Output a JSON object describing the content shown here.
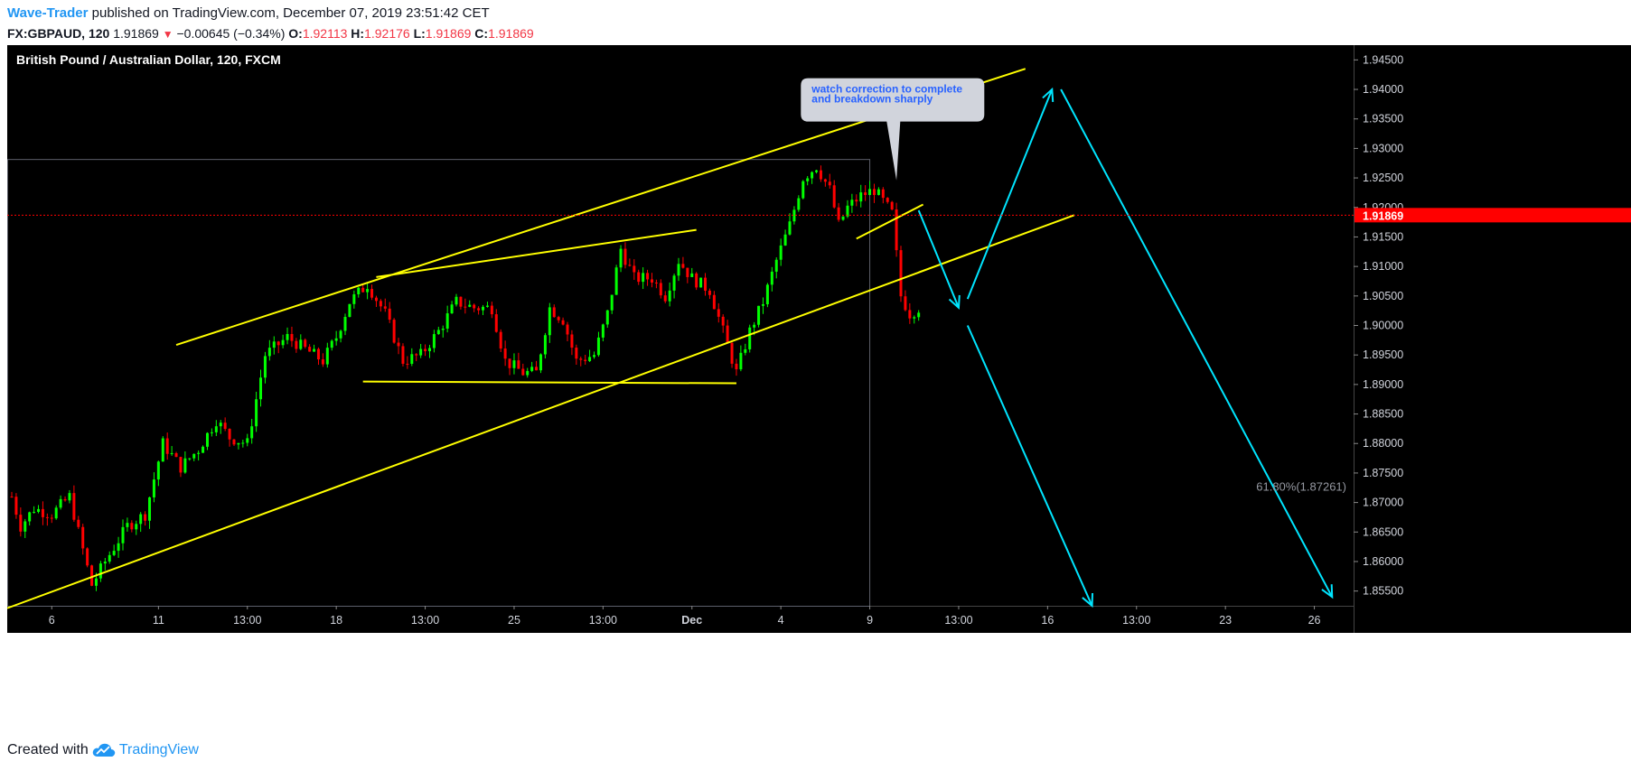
{
  "header": {
    "author": "Wave-Trader",
    "published_text": "published on TradingView.com, December 07, 2019 23:51:42 CET",
    "symbol": "FX:GBPAUD, 120",
    "last": "1.91869",
    "change": "−0.00645 (−0.34%)",
    "open_label": "O:",
    "open": "1.92113",
    "high_label": "H:",
    "high": "1.92176",
    "low_label": "L:",
    "low": "1.91869",
    "close_label": "C:",
    "close": "1.91869"
  },
  "footer": {
    "created_with": "Created with",
    "brand": "TradingView",
    "logo_icon": "tradingview-cloud-icon"
  },
  "chart_data": {
    "type": "candlestick",
    "title": "British Pound / Australian Dollar, 120, FXCM",
    "colors": {
      "background": "#000000",
      "up": "#00ff00",
      "down": "#ff0000",
      "trendline": "#ffff00",
      "projection": "#00e5ff",
      "price_line": "#ff0000",
      "callout_bg": "#d1d4dc",
      "callout_text": "#2962ff"
    },
    "ylim": [
      1.8525,
      1.9475
    ],
    "y_ticks": [
      "1.94500",
      "1.94000",
      "1.93500",
      "1.93000",
      "1.92500",
      "1.92000",
      "1.91500",
      "1.91000",
      "1.90500",
      "1.90000",
      "1.89500",
      "1.89000",
      "1.88500",
      "1.88000",
      "1.87500",
      "1.87000",
      "1.86500",
      "1.86000",
      "1.85500"
    ],
    "x_ticks": [
      {
        "label": "6",
        "i": 9
      },
      {
        "label": "11",
        "i": 33
      },
      {
        "label": "13:00",
        "i": 53
      },
      {
        "label": "18",
        "i": 73
      },
      {
        "label": "13:00",
        "i": 93
      },
      {
        "label": "25",
        "i": 113
      },
      {
        "label": "13:00",
        "i": 133
      },
      {
        "label": "Dec",
        "i": 153,
        "bold": true
      },
      {
        "label": "4",
        "i": 173
      },
      {
        "label": "9",
        "i": 193
      },
      {
        "label": "13:00",
        "i": 213
      },
      {
        "label": "16",
        "i": 233
      },
      {
        "label": "13:00",
        "i": 253
      },
      {
        "label": "23",
        "i": 273
      },
      {
        "label": "26",
        "i": 293
      }
    ],
    "last_price": 1.91869,
    "last_price_label": "1.91869",
    "fib_label": "61.80%(1.87261)",
    "fib_level": 1.87261,
    "annotation": [
      "watch correction to complete",
      "and breakdown sharply"
    ],
    "waypoints": [
      [
        0,
        1.871
      ],
      [
        2,
        1.866
      ],
      [
        5,
        1.869
      ],
      [
        9,
        1.868
      ],
      [
        13,
        1.871
      ],
      [
        18,
        1.856
      ],
      [
        21,
        1.86
      ],
      [
        26,
        1.866
      ],
      [
        30,
        1.868
      ],
      [
        34,
        1.88
      ],
      [
        38,
        1.876
      ],
      [
        42,
        1.879
      ],
      [
        46,
        1.884
      ],
      [
        49,
        1.881
      ],
      [
        53,
        1.88
      ],
      [
        57,
        1.895
      ],
      [
        62,
        1.898
      ],
      [
        66,
        1.896
      ],
      [
        70,
        1.894
      ],
      [
        73,
        1.898
      ],
      [
        76,
        1.904
      ],
      [
        80,
        1.907
      ],
      [
        84,
        1.902
      ],
      [
        88,
        1.894
      ],
      [
        92,
        1.895
      ],
      [
        96,
        1.899
      ],
      [
        100,
        1.904
      ],
      [
        104,
        1.903
      ],
      [
        108,
        1.903
      ],
      [
        111,
        1.894
      ],
      [
        115,
        1.892
      ],
      [
        118,
        1.892
      ],
      [
        121,
        1.903
      ],
      [
        124,
        1.901
      ],
      [
        127,
        1.894
      ],
      [
        131,
        1.895
      ],
      [
        134,
        1.902
      ],
      [
        137,
        1.913
      ],
      [
        140,
        1.908
      ],
      [
        144,
        1.908
      ],
      [
        147,
        1.905
      ],
      [
        150,
        1.911
      ],
      [
        153,
        1.908
      ],
      [
        157,
        1.906
      ],
      [
        160,
        1.899
      ],
      [
        163,
        1.892
      ],
      [
        166,
        1.899
      ],
      [
        169,
        1.904
      ],
      [
        172,
        1.911
      ],
      [
        175,
        1.917
      ],
      [
        178,
        1.925
      ],
      [
        181,
        1.927
      ],
      [
        184,
        1.923
      ],
      [
        186,
        1.917
      ],
      [
        188,
        1.92
      ],
      [
        191,
        1.922
      ],
      [
        194,
        1.923
      ],
      [
        198,
        1.919
      ],
      [
        200,
        1.905
      ],
      [
        202,
        1.902
      ],
      [
        204,
        1.903
      ]
    ],
    "lines": [
      {
        "kind": "trend",
        "from": [
          -1,
          1.8521
        ],
        "to": [
          239,
          1.9187
        ]
      },
      {
        "kind": "trend",
        "from": [
          37,
          1.8967
        ],
        "to": [
          228,
          1.9435
        ]
      },
      {
        "kind": "trend",
        "from": [
          79,
          1.8905
        ],
        "to": [
          163,
          1.8902
        ]
      },
      {
        "kind": "trend",
        "from": [
          82,
          1.9082
        ],
        "to": [
          154,
          1.9162
        ]
      },
      {
        "kind": "trend",
        "from": [
          190,
          1.9147
        ],
        "to": [
          205,
          1.9205
        ]
      },
      {
        "kind": "projection",
        "from": [
          204,
          1.9195
        ],
        "to": [
          213,
          1.903
        ]
      },
      {
        "kind": "projection",
        "from": [
          215,
          1.9045
        ],
        "to": [
          234,
          1.94
        ]
      },
      {
        "kind": "projection",
        "from": [
          236,
          1.94
        ],
        "to": [
          297,
          1.854
        ]
      },
      {
        "kind": "projection",
        "from": [
          215,
          1.9
        ],
        "to": [
          243,
          1.8525
        ]
      }
    ]
  }
}
